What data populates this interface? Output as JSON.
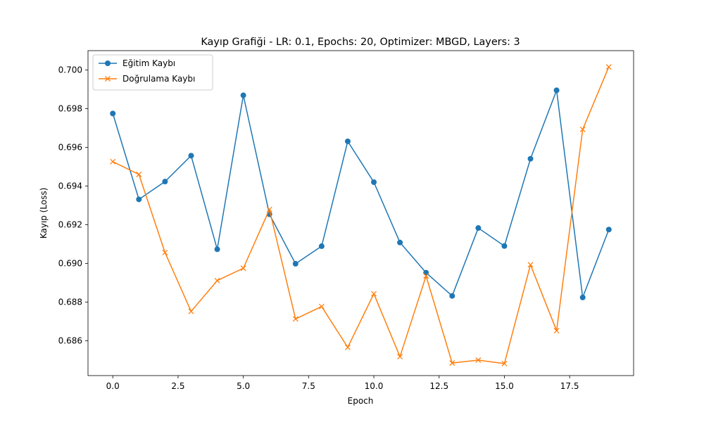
{
  "chart_data": {
    "type": "line",
    "title": "Kayıp Grafiği - LR: 0.1, Epochs: 20, Optimizer: MBGD, Layers: 3",
    "xlabel": "Epoch",
    "ylabel": "Kayıp (Loss)",
    "xlim": [
      -0.95,
      19.95
    ],
    "ylim": [
      0.6842,
      0.701
    ],
    "x_ticks": [
      0.0,
      2.5,
      5.0,
      7.5,
      10.0,
      12.5,
      15.0,
      17.5
    ],
    "x_tick_labels": [
      "0.0",
      "2.5",
      "5.0",
      "7.5",
      "10.0",
      "12.5",
      "15.0",
      "17.5"
    ],
    "y_ticks": [
      0.686,
      0.688,
      0.69,
      0.692,
      0.694,
      0.696,
      0.698,
      0.7
    ],
    "y_tick_labels": [
      "0.686",
      "0.688",
      "0.690",
      "0.692",
      "0.694",
      "0.696",
      "0.698",
      "0.700"
    ],
    "grid": false,
    "legend_position": "top-left",
    "x": [
      0,
      1,
      2,
      3,
      4,
      5,
      6,
      7,
      8,
      9,
      10,
      11,
      12,
      13,
      14,
      15,
      16,
      17,
      18,
      19
    ],
    "series": [
      {
        "name": "Eğitim Kaybı",
        "color": "#1f77b4",
        "marker": "circle",
        "values": [
          0.69775,
          0.69331,
          0.69423,
          0.69557,
          0.69073,
          0.69869,
          0.69254,
          0.68998,
          0.69089,
          0.69631,
          0.6942,
          0.69108,
          0.68952,
          0.68832,
          0.69183,
          0.6909,
          0.69541,
          0.69895,
          0.68824,
          0.69175
        ]
      },
      {
        "name": "Doğrulama Kaybı",
        "color": "#ff7f0e",
        "marker": "x",
        "values": [
          0.69526,
          0.6946,
          0.69056,
          0.68752,
          0.68911,
          0.68975,
          0.69279,
          0.68713,
          0.68777,
          0.68566,
          0.68843,
          0.68518,
          0.68935,
          0.68485,
          0.685,
          0.68482,
          0.68993,
          0.68652,
          0.69693,
          0.70016
        ]
      }
    ]
  }
}
